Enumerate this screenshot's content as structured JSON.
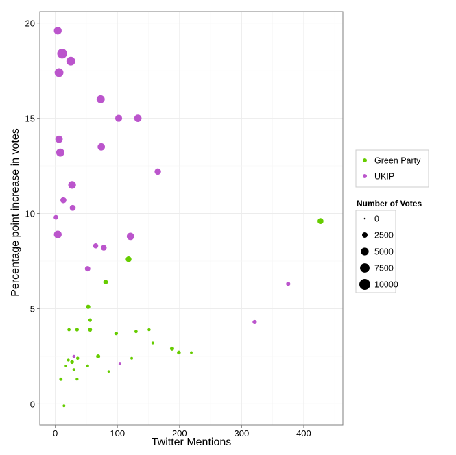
{
  "chart_data": {
    "type": "scatter",
    "title": "",
    "xlabel": "Twitter Mentions",
    "ylabel": "Percentage point increase in votes",
    "xlim": [
      -25,
      463
    ],
    "ylim": [
      -1.1,
      20.6
    ],
    "x_ticks": [
      0,
      100,
      200,
      300,
      400
    ],
    "y_ticks": [
      0,
      5,
      10,
      15,
      20
    ],
    "grid": true,
    "legend_position": "right",
    "colors": {
      "Green Party": "#66cc00",
      "UKIP": "#bb55cc"
    },
    "series": [
      {
        "name": "Green Party",
        "color": "#66cc00",
        "points": [
          {
            "x": 427,
            "y": 9.6,
            "votes": 3000
          },
          {
            "x": 118,
            "y": 7.6,
            "votes": 2800
          },
          {
            "x": 81,
            "y": 6.4,
            "votes": 1800
          },
          {
            "x": 53,
            "y": 5.1,
            "votes": 1500
          },
          {
            "x": 56,
            "y": 4.4,
            "votes": 1000
          },
          {
            "x": 22,
            "y": 3.9,
            "votes": 900
          },
          {
            "x": 35,
            "y": 3.9,
            "votes": 1100
          },
          {
            "x": 56,
            "y": 3.9,
            "votes": 1300
          },
          {
            "x": 98,
            "y": 3.7,
            "votes": 1100
          },
          {
            "x": 130,
            "y": 3.8,
            "votes": 900
          },
          {
            "x": 151,
            "y": 3.9,
            "votes": 800
          },
          {
            "x": 157,
            "y": 3.2,
            "votes": 700
          },
          {
            "x": 188,
            "y": 2.9,
            "votes": 1400
          },
          {
            "x": 199,
            "y": 2.7,
            "votes": 1200
          },
          {
            "x": 219,
            "y": 2.7,
            "votes": 600
          },
          {
            "x": 69,
            "y": 2.5,
            "votes": 1400
          },
          {
            "x": 123,
            "y": 2.4,
            "votes": 600
          },
          {
            "x": 21,
            "y": 2.3,
            "votes": 700
          },
          {
            "x": 27,
            "y": 2.2,
            "votes": 1200
          },
          {
            "x": 36,
            "y": 2.4,
            "votes": 800
          },
          {
            "x": 17,
            "y": 2.0,
            "votes": 500
          },
          {
            "x": 52,
            "y": 2.0,
            "votes": 700
          },
          {
            "x": 30,
            "y": 1.8,
            "votes": 700
          },
          {
            "x": 86,
            "y": 1.7,
            "votes": 500
          },
          {
            "x": 9,
            "y": 1.3,
            "votes": 900
          },
          {
            "x": 35,
            "y": 1.3,
            "votes": 700
          },
          {
            "x": 14,
            "y": -0.1,
            "votes": 600
          }
        ]
      },
      {
        "name": "UKIP",
        "color": "#bb55cc",
        "points": [
          {
            "x": 4,
            "y": 19.6,
            "votes": 5000
          },
          {
            "x": 11,
            "y": 18.4,
            "votes": 8000
          },
          {
            "x": 25,
            "y": 18.0,
            "votes": 6500
          },
          {
            "x": 6,
            "y": 17.4,
            "votes": 6500
          },
          {
            "x": 73,
            "y": 16.0,
            "votes": 5500
          },
          {
            "x": 102,
            "y": 15.0,
            "votes": 4000
          },
          {
            "x": 133,
            "y": 15.0,
            "votes": 4500
          },
          {
            "x": 6,
            "y": 13.9,
            "votes": 4500
          },
          {
            "x": 8,
            "y": 13.2,
            "votes": 5500
          },
          {
            "x": 74,
            "y": 13.5,
            "votes": 4500
          },
          {
            "x": 165,
            "y": 12.2,
            "votes": 3500
          },
          {
            "x": 27,
            "y": 11.5,
            "votes": 5000
          },
          {
            "x": 13,
            "y": 10.7,
            "votes": 3000
          },
          {
            "x": 28,
            "y": 10.3,
            "votes": 3000
          },
          {
            "x": 1,
            "y": 9.8,
            "votes": 1800
          },
          {
            "x": 4,
            "y": 8.9,
            "votes": 5000
          },
          {
            "x": 121,
            "y": 8.8,
            "votes": 4500
          },
          {
            "x": 65,
            "y": 8.3,
            "votes": 2200
          },
          {
            "x": 78,
            "y": 8.2,
            "votes": 2800
          },
          {
            "x": 52,
            "y": 7.1,
            "votes": 2500
          },
          {
            "x": 375,
            "y": 6.3,
            "votes": 1500
          },
          {
            "x": 321,
            "y": 4.3,
            "votes": 1500
          },
          {
            "x": 30,
            "y": 2.5,
            "votes": 800
          },
          {
            "x": 104,
            "y": 2.1,
            "votes": 600
          }
        ]
      }
    ],
    "legend": {
      "party_entries": [
        "Green Party",
        "UKIP"
      ],
      "size_title": "Number of Votes",
      "size_entries": [
        {
          "label": "0",
          "value": 0
        },
        {
          "label": "2500",
          "value": 2500
        },
        {
          "label": "5000",
          "value": 5000
        },
        {
          "label": "7500",
          "value": 7500
        },
        {
          "label": "10000",
          "value": 10000
        }
      ]
    }
  }
}
